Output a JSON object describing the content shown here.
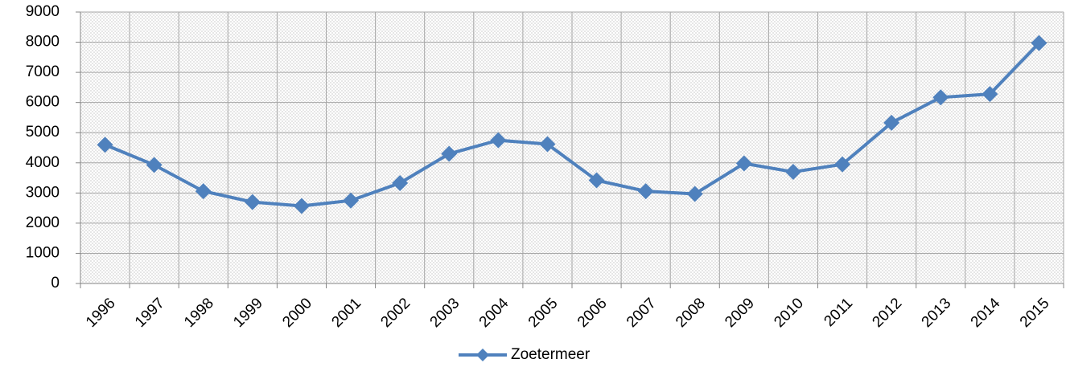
{
  "chart_data": {
    "type": "line",
    "categories": [
      "1996",
      "1997",
      "1998",
      "1999",
      "2000",
      "2001",
      "2002",
      "2003",
      "2004",
      "2005",
      "2006",
      "2007",
      "2008",
      "2009",
      "2010",
      "2011",
      "2012",
      "2013",
      "2014",
      "2015"
    ],
    "series": [
      {
        "name": "Zoetermeer",
        "color": "#4f81bd",
        "values": [
          4600,
          3930,
          3060,
          2700,
          2570,
          2750,
          3330,
          4300,
          4750,
          4620,
          3420,
          3060,
          2970,
          3980,
          3700,
          3950,
          5330,
          6170,
          6280,
          7970
        ]
      }
    ],
    "ylim": [
      0,
      9000
    ],
    "yticks": [
      0,
      1000,
      2000,
      3000,
      4000,
      5000,
      6000,
      7000,
      8000,
      9000
    ],
    "grid": true,
    "legend": "bottom"
  }
}
